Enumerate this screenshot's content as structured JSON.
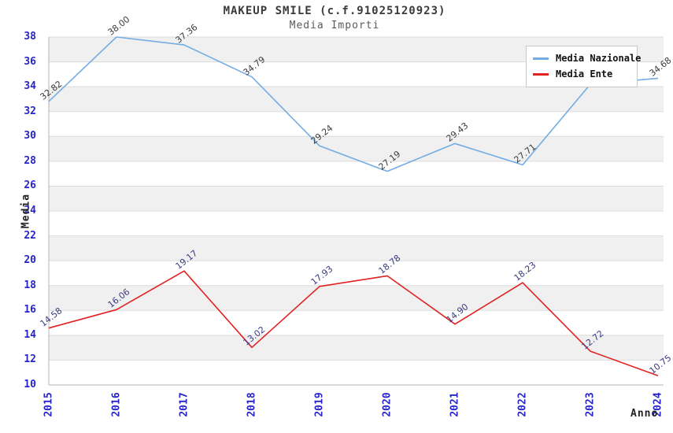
{
  "title": "MAKEUP SMILE (c.f.91025120923)",
  "subtitle": "Media Importi",
  "chart_data": {
    "type": "line",
    "x": [
      "2015",
      "2016",
      "2017",
      "2018",
      "2019",
      "2020",
      "2021",
      "2022",
      "2023",
      "2024"
    ],
    "series": [
      {
        "name": "Media Nazionale",
        "color": "#74ace4",
        "label_color": "#3c3c3c",
        "values": [
          32.82,
          38.0,
          37.36,
          34.79,
          29.24,
          27.19,
          29.43,
          27.71,
          34.2,
          34.68
        ],
        "point_labels": [
          "32.82",
          "38.00",
          "37.36",
          "34.79",
          "29.24",
          "27.19",
          "29.43",
          "27.71",
          "",
          "34.68"
        ]
      },
      {
        "name": "Media Ente",
        "color": "#e02222",
        "label_color": "#3a3a85",
        "values": [
          14.58,
          16.06,
          19.17,
          13.02,
          17.93,
          18.78,
          14.9,
          18.23,
          12.72,
          10.75
        ],
        "point_labels": [
          "14.58",
          "16.06",
          "19.17",
          "13.02",
          "17.93",
          "18.78",
          "14.90",
          "18.23",
          "12.72",
          "10.75"
        ]
      }
    ],
    "xlabel": "Anno",
    "ylabel": "Media",
    "ylim": [
      10,
      38
    ],
    "ytick_step": 2,
    "grid": true,
    "legend_position": "top-right",
    "colors": {
      "tick_label": "#2525c8",
      "band": "#f0f0f0",
      "gridline": "#dcdcdc",
      "spine": "#b4b4b4"
    }
  }
}
